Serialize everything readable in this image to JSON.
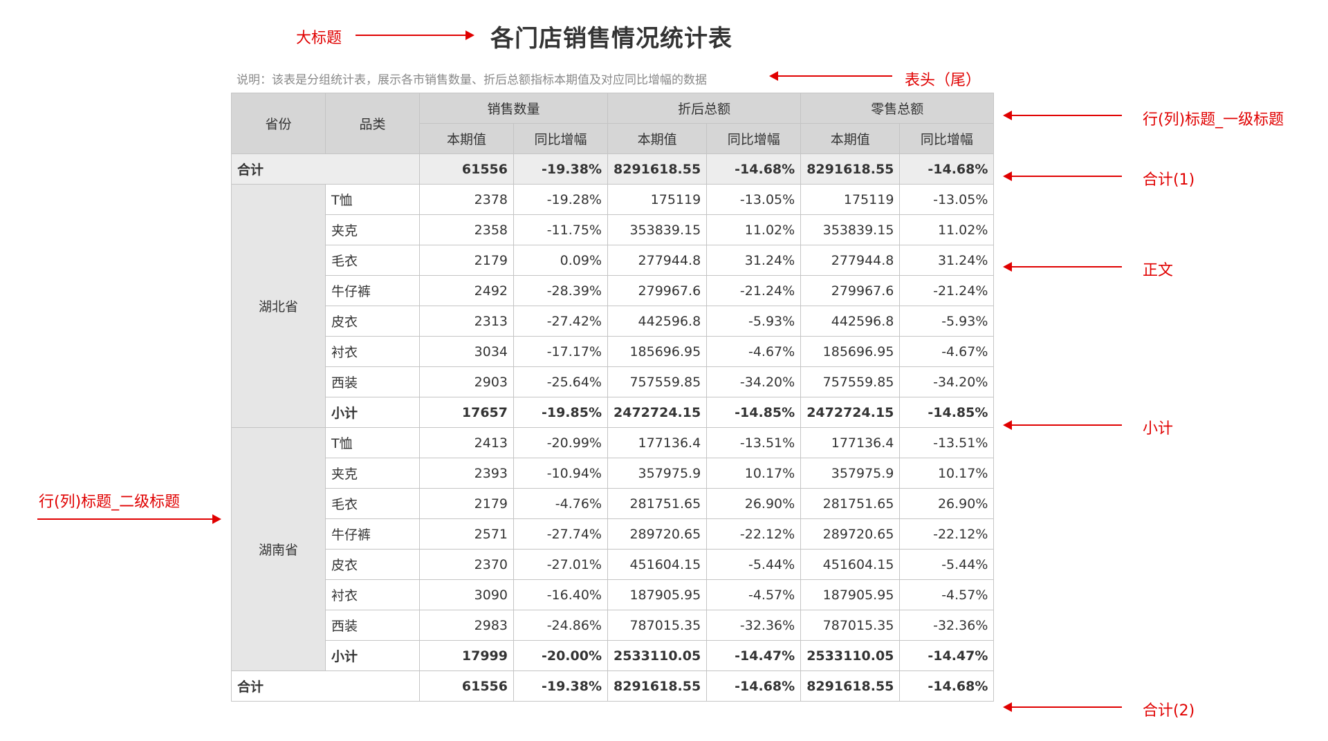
{
  "title": "各门店销售情况统计表",
  "description": "说明：该表是分组统计表，展示各市销售数量、折后总额指标本期值及对应同比增幅的数据",
  "annotations": {
    "title": "大标题",
    "header": "表头（尾）",
    "level1": "行(列)标题_一级标题",
    "total1": "合计(1)",
    "body": "正文",
    "subtotal": "小计",
    "level2": "行(列)标题_二级标题",
    "total2": "合计(2)"
  },
  "table": {
    "headers": {
      "province": "省份",
      "category": "品类",
      "groups": [
        "销售数量",
        "折后总额",
        "零售总额"
      ],
      "current": "本期值",
      "yoy": "同比增幅"
    },
    "total_label": "合计",
    "subtotal_label": "小计",
    "total": [
      "61556",
      "-19.38%",
      "8291618.55",
      "-14.68%",
      "8291618.55",
      "-14.68%"
    ],
    "provinces": [
      {
        "name": "湖北省",
        "rows": [
          {
            "cat": "T恤",
            "v": [
              "2378",
              "-19.28%",
              "175119",
              "-13.05%",
              "175119",
              "-13.05%"
            ]
          },
          {
            "cat": "夹克",
            "v": [
              "2358",
              "-11.75%",
              "353839.15",
              "11.02%",
              "353839.15",
              "11.02%"
            ]
          },
          {
            "cat": "毛衣",
            "v": [
              "2179",
              "0.09%",
              "277944.8",
              "31.24%",
              "277944.8",
              "31.24%"
            ]
          },
          {
            "cat": "牛仔裤",
            "v": [
              "2492",
              "-28.39%",
              "279967.6",
              "-21.24%",
              "279967.6",
              "-21.24%"
            ]
          },
          {
            "cat": "皮衣",
            "v": [
              "2313",
              "-27.42%",
              "442596.8",
              "-5.93%",
              "442596.8",
              "-5.93%"
            ]
          },
          {
            "cat": "衬衣",
            "v": [
              "3034",
              "-17.17%",
              "185696.95",
              "-4.67%",
              "185696.95",
              "-4.67%"
            ]
          },
          {
            "cat": "西装",
            "v": [
              "2903",
              "-25.64%",
              "757559.85",
              "-34.20%",
              "757559.85",
              "-34.20%"
            ]
          }
        ],
        "subtotal": [
          "17657",
          "-19.85%",
          "2472724.15",
          "-14.85%",
          "2472724.15",
          "-14.85%"
        ]
      },
      {
        "name": "湖南省",
        "rows": [
          {
            "cat": "T恤",
            "v": [
              "2413",
              "-20.99%",
              "177136.4",
              "-13.51%",
              "177136.4",
              "-13.51%"
            ]
          },
          {
            "cat": "夹克",
            "v": [
              "2393",
              "-10.94%",
              "357975.9",
              "10.17%",
              "357975.9",
              "10.17%"
            ]
          },
          {
            "cat": "毛衣",
            "v": [
              "2179",
              "-4.76%",
              "281751.65",
              "26.90%",
              "281751.65",
              "26.90%"
            ]
          },
          {
            "cat": "牛仔裤",
            "v": [
              "2571",
              "-27.74%",
              "289720.65",
              "-22.12%",
              "289720.65",
              "-22.12%"
            ]
          },
          {
            "cat": "皮衣",
            "v": [
              "2370",
              "-27.01%",
              "451604.15",
              "-5.44%",
              "451604.15",
              "-5.44%"
            ]
          },
          {
            "cat": "衬衣",
            "v": [
              "3090",
              "-16.40%",
              "187905.95",
              "-4.57%",
              "187905.95",
              "-4.57%"
            ]
          },
          {
            "cat": "西装",
            "v": [
              "2983",
              "-24.86%",
              "787015.35",
              "-32.36%",
              "787015.35",
              "-32.36%"
            ]
          }
        ],
        "subtotal": [
          "17999",
          "-20.00%",
          "2533110.05",
          "-14.47%",
          "2533110.05",
          "-14.47%"
        ]
      }
    ],
    "total_bottom": [
      "61556",
      "-19.38%",
      "8291618.55",
      "-14.68%",
      "8291618.55",
      "-14.68%"
    ]
  }
}
